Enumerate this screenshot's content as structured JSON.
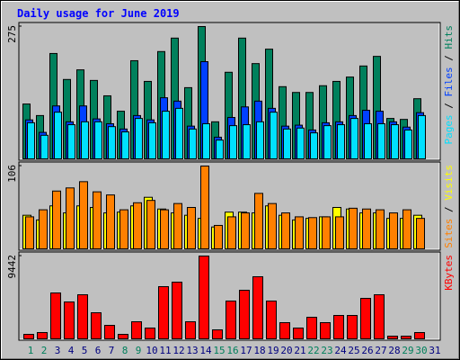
{
  "chart_data": [
    {
      "type": "bar",
      "title": "Daily usage for June 2019",
      "ylim": [
        0,
        275
      ],
      "yticks": [
        275
      ],
      "legend_separator": " / ",
      "series": [
        {
          "name": "Hits",
          "color": "#00805c",
          "values": [
            114,
            90,
            219,
            165,
            185,
            163,
            131,
            99,
            204,
            161,
            223,
            251,
            148,
            275,
            77,
            180,
            251,
            198,
            228,
            150,
            138,
            138,
            152,
            161,
            170,
            193,
            213,
            84,
            82,
            125,
            0
          ]
        },
        {
          "name": "Files",
          "color": "#0040ff",
          "values": [
            81,
            55,
            110,
            77,
            110,
            83,
            73,
            62,
            90,
            81,
            127,
            120,
            68,
            202,
            45,
            86,
            108,
            120,
            105,
            68,
            70,
            60,
            75,
            77,
            90,
            101,
            99,
            77,
            66,
            96,
            0
          ]
        },
        {
          "name": "Pages",
          "color": "#00e0ff",
          "values": [
            75,
            49,
            97,
            71,
            77,
            77,
            67,
            56,
            84,
            75,
            99,
            105,
            62,
            73,
            39,
            69,
            71,
            77,
            97,
            62,
            64,
            54,
            69,
            71,
            84,
            73,
            73,
            71,
            60,
            90,
            0
          ]
        }
      ]
    },
    {
      "type": "bar",
      "ylim": [
        0,
        106
      ],
      "yticks": [
        106
      ],
      "legend_separator": " / ",
      "series": [
        {
          "name": "Visits",
          "color": "#ffff00",
          "values": [
            43,
            37,
            55,
            46,
            55,
            53,
            46,
            47,
            55,
            66,
            51,
            46,
            43,
            39,
            28,
            47,
            47,
            46,
            55,
            43,
            37,
            39,
            41,
            53,
            51,
            46,
            46,
            39,
            39,
            43,
            0
          ]
        },
        {
          "name": "Sites",
          "color": "#ff8000",
          "values": [
            41,
            50,
            74,
            78,
            86,
            73,
            69,
            50,
            59,
            62,
            50,
            58,
            53,
            106,
            30,
            41,
            46,
            71,
            58,
            46,
            41,
            40,
            41,
            41,
            52,
            51,
            50,
            46,
            50,
            39,
            0
          ]
        }
      ]
    },
    {
      "type": "bar",
      "ylim": [
        0,
        9442
      ],
      "yticks": [
        9442
      ],
      "categories": [
        "1",
        "2",
        "3",
        "4",
        "5",
        "6",
        "7",
        "8",
        "9",
        "10",
        "11",
        "12",
        "13",
        "14",
        "15",
        "16",
        "17",
        "18",
        "19",
        "20",
        "21",
        "22",
        "23",
        "24",
        "25",
        "26",
        "27",
        "28",
        "29",
        "30",
        "31"
      ],
      "category_colors": [
        "#00805c",
        "#00805c",
        "#000080",
        "#000080",
        "#000080",
        "#000080",
        "#000080",
        "#00805c",
        "#00805c",
        "#000080",
        "#000080",
        "#000080",
        "#000080",
        "#000080",
        "#00805c",
        "#00805c",
        "#000080",
        "#000080",
        "#000080",
        "#000080",
        "#000080",
        "#00805c",
        "#00805c",
        "#000080",
        "#000080",
        "#000080",
        "#000080",
        "#000080",
        "#00805c",
        "#00805c",
        "#000080"
      ],
      "series": [
        {
          "name": "KBytes",
          "color": "#ff0000",
          "values": [
            513,
            718,
            5234,
            4208,
            5029,
            2976,
            1539,
            513,
            1950,
            1232,
            5953,
            6466,
            1950,
            9442,
            1026,
            4311,
            5542,
            7082,
            4311,
            1847,
            1232,
            2463,
            1847,
            2668,
            2668,
            4618,
            5029,
            308,
            308,
            718,
            0
          ]
        }
      ]
    }
  ]
}
